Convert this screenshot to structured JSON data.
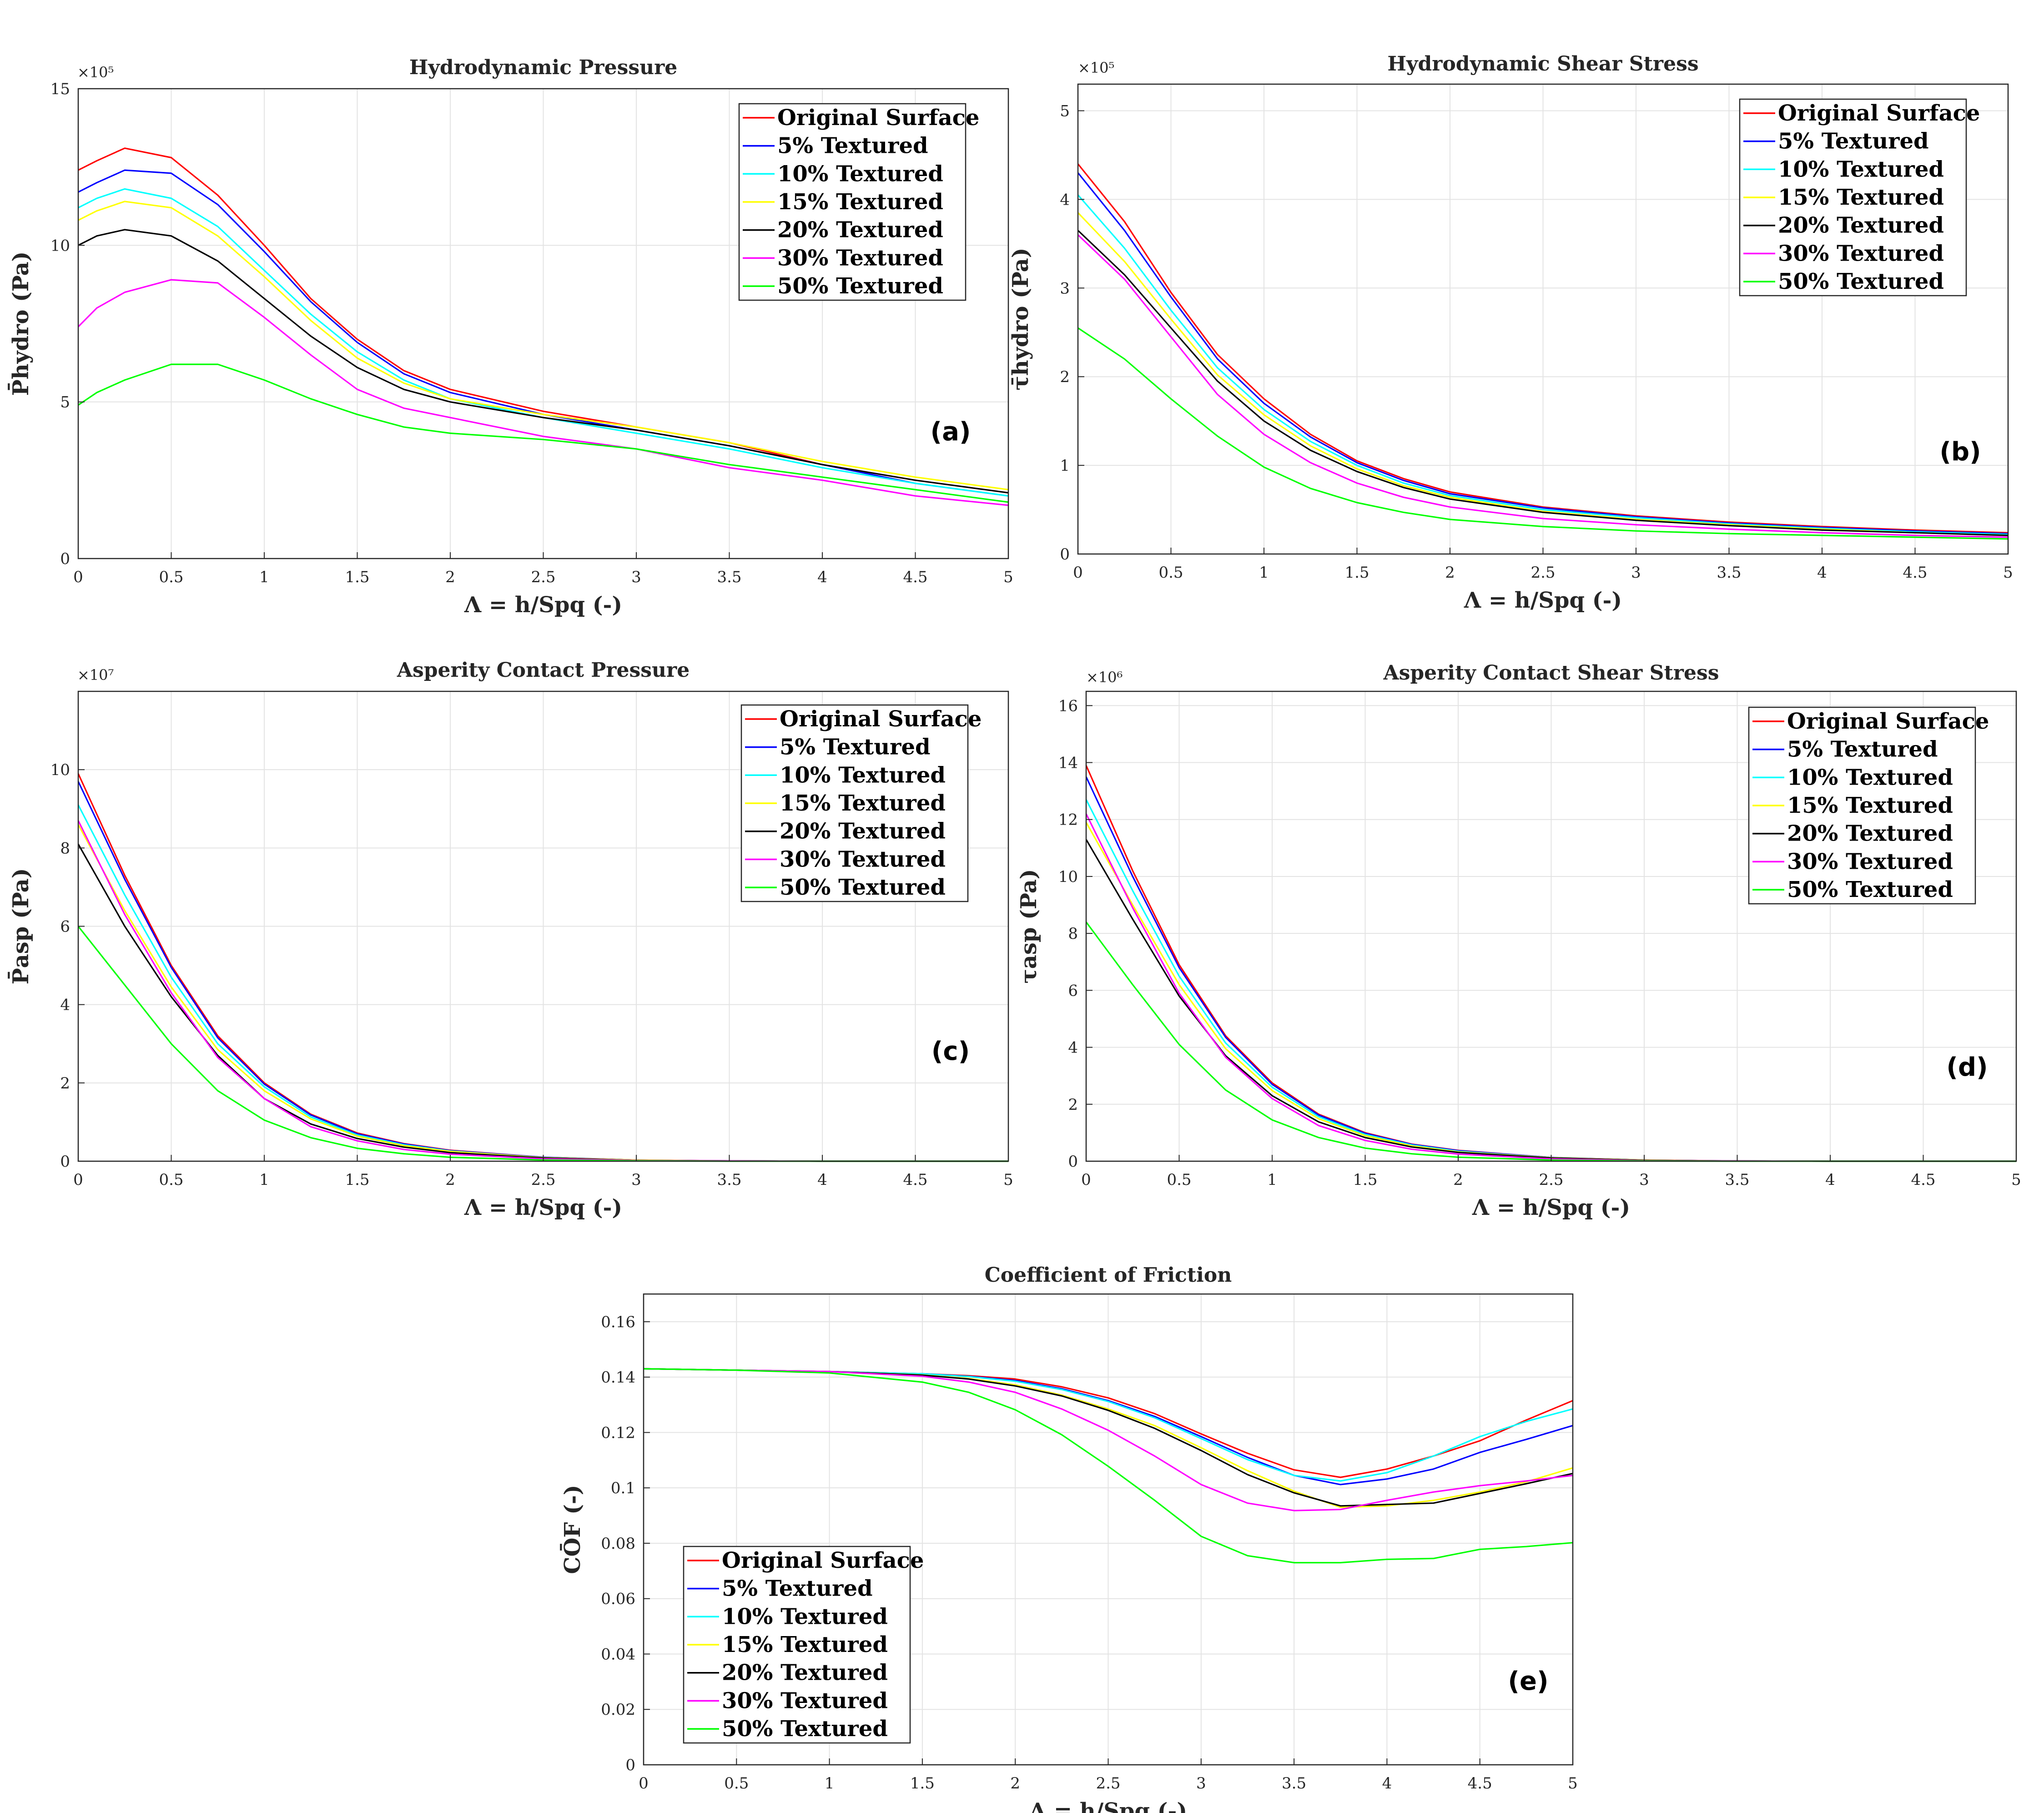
{
  "chart_data": [
    {
      "type": "line",
      "title": "Hydrodynamic Pressure",
      "xlabel": "Λ = h/Spq (-)",
      "ylabel": "P̄hydro (Pa)",
      "multiplier": "×10⁵",
      "panel_tag": "(a)",
      "xlim": [
        0,
        5
      ],
      "ylim": [
        0,
        15
      ],
      "xticks": [
        0,
        0.5,
        1,
        1.5,
        2,
        2.5,
        3,
        3.5,
        4,
        4.5,
        5
      ],
      "xtick_labels": [
        "0",
        "0.5",
        "1",
        "1.5",
        "2",
        "2.5",
        "3",
        "3.5",
        "4",
        "4.5",
        "5"
      ],
      "yticks": [
        0,
        5,
        10,
        15
      ],
      "ytick_labels": [
        "0",
        "5",
        "10",
        "15"
      ],
      "grid": true,
      "legend": "top-right",
      "x": [
        0,
        0.1,
        0.25,
        0.5,
        0.75,
        1,
        1.25,
        1.5,
        1.75,
        2,
        2.5,
        3,
        3.5,
        4,
        4.5,
        5
      ],
      "series": [
        {
          "name": "Original Surface",
          "color": "#ff0000",
          "values": [
            12.4,
            12.7,
            13.1,
            12.8,
            11.6,
            10.0,
            8.3,
            7.0,
            6.0,
            5.4,
            4.7,
            4.2,
            3.7,
            3.0,
            2.5,
            2.1
          ]
        },
        {
          "name": "5% Textured",
          "color": "#0000ff",
          "values": [
            11.7,
            12.0,
            12.4,
            12.3,
            11.3,
            9.8,
            8.2,
            6.9,
            5.9,
            5.3,
            4.6,
            4.1,
            3.6,
            3.0,
            2.4,
            2.0
          ]
        },
        {
          "name": "10% Textured",
          "color": "#00ffff",
          "values": [
            11.2,
            11.5,
            11.8,
            11.5,
            10.6,
            9.2,
            7.8,
            6.6,
            5.7,
            5.1,
            4.5,
            4.0,
            3.5,
            2.9,
            2.4,
            2.0
          ]
        },
        {
          "name": "15% Textured",
          "color": "#ffff00",
          "values": [
            10.8,
            11.1,
            11.4,
            11.2,
            10.3,
            9.0,
            7.6,
            6.4,
            5.6,
            5.1,
            4.6,
            4.2,
            3.7,
            3.1,
            2.6,
            2.2
          ]
        },
        {
          "name": "20% Textured",
          "color": "#000000",
          "values": [
            10.0,
            10.3,
            10.5,
            10.3,
            9.5,
            8.3,
            7.1,
            6.1,
            5.4,
            5.0,
            4.5,
            4.1,
            3.6,
            3.0,
            2.5,
            2.1
          ]
        },
        {
          "name": "30% Textured",
          "color": "#ff00ff",
          "values": [
            7.4,
            8.0,
            8.5,
            8.9,
            8.8,
            7.7,
            6.5,
            5.4,
            4.8,
            4.5,
            3.9,
            3.5,
            2.9,
            2.5,
            2.0,
            1.7
          ]
        },
        {
          "name": "50% Textured",
          "color": "#00ff00",
          "values": [
            4.9,
            5.3,
            5.7,
            6.2,
            6.2,
            5.7,
            5.1,
            4.6,
            4.2,
            4.0,
            3.8,
            3.5,
            3.0,
            2.6,
            2.2,
            1.8
          ]
        }
      ]
    },
    {
      "type": "line",
      "title": "Hydrodynamic Shear Stress",
      "xlabel": "Λ = h/Spq (-)",
      "ylabel": "τ̄hydro (Pa)",
      "multiplier": "×10⁵",
      "panel_tag": "(b)",
      "xlim": [
        0,
        5
      ],
      "ylim": [
        0,
        5.3
      ],
      "xticks": [
        0,
        0.5,
        1,
        1.5,
        2,
        2.5,
        3,
        3.5,
        4,
        4.5,
        5
      ],
      "xtick_labels": [
        "0",
        "0.5",
        "1",
        "1.5",
        "2",
        "2.5",
        "3",
        "3.5",
        "4",
        "4.5",
        "5"
      ],
      "yticks": [
        0,
        1,
        2,
        3,
        4,
        5
      ],
      "ytick_labels": [
        "0",
        "1",
        "2",
        "3",
        "4",
        "5"
      ],
      "grid": true,
      "legend": "top-right",
      "x": [
        0,
        0.25,
        0.5,
        0.75,
        1,
        1.25,
        1.5,
        1.75,
        2,
        2.5,
        3,
        3.5,
        4,
        4.5,
        5
      ],
      "series": [
        {
          "name": "Original Surface",
          "color": "#ff0000",
          "values": [
            4.4,
            3.75,
            2.95,
            2.25,
            1.75,
            1.35,
            1.05,
            0.85,
            0.7,
            0.53,
            0.43,
            0.36,
            0.31,
            0.27,
            0.24
          ]
        },
        {
          "name": "5% Textured",
          "color": "#0000ff",
          "values": [
            4.3,
            3.65,
            2.9,
            2.2,
            1.7,
            1.32,
            1.03,
            0.83,
            0.68,
            0.52,
            0.42,
            0.35,
            0.3,
            0.26,
            0.23
          ]
        },
        {
          "name": "10% Textured",
          "color": "#00ffff",
          "values": [
            4.05,
            3.45,
            2.75,
            2.1,
            1.63,
            1.27,
            1.0,
            0.8,
            0.66,
            0.5,
            0.41,
            0.34,
            0.29,
            0.25,
            0.22
          ]
        },
        {
          "name": "15% Textured",
          "color": "#ffff00",
          "values": [
            3.85,
            3.3,
            2.65,
            2.02,
            1.57,
            1.22,
            0.96,
            0.77,
            0.64,
            0.48,
            0.39,
            0.33,
            0.28,
            0.24,
            0.21
          ]
        },
        {
          "name": "20% Textured",
          "color": "#000000",
          "values": [
            3.65,
            3.15,
            2.55,
            1.95,
            1.5,
            1.17,
            0.93,
            0.75,
            0.62,
            0.47,
            0.38,
            0.32,
            0.27,
            0.24,
            0.21
          ]
        },
        {
          "name": "30% Textured",
          "color": "#ff00ff",
          "values": [
            3.6,
            3.1,
            2.45,
            1.8,
            1.35,
            1.03,
            0.8,
            0.64,
            0.53,
            0.4,
            0.33,
            0.28,
            0.24,
            0.21,
            0.19
          ]
        },
        {
          "name": "50% Textured",
          "color": "#00ff00",
          "values": [
            2.55,
            2.2,
            1.75,
            1.33,
            0.98,
            0.74,
            0.58,
            0.47,
            0.39,
            0.31,
            0.26,
            0.23,
            0.21,
            0.19,
            0.17
          ]
        }
      ]
    },
    {
      "type": "line",
      "title": "Asperity Contact Pressure",
      "xlabel": "Λ = h/Spq (-)",
      "ylabel": "P̄asp (Pa)",
      "multiplier": "×10⁷",
      "panel_tag": "(c)",
      "xlim": [
        0,
        5
      ],
      "ylim": [
        0,
        12
      ],
      "xticks": [
        0,
        0.5,
        1,
        1.5,
        2,
        2.5,
        3,
        3.5,
        4,
        4.5,
        5
      ],
      "xtick_labels": [
        "0",
        "0.5",
        "1",
        "1.5",
        "2",
        "2.5",
        "3",
        "3.5",
        "4",
        "4.5",
        "5"
      ],
      "yticks": [
        0,
        2,
        4,
        6,
        8,
        10
      ],
      "ytick_labels": [
        "0",
        "2",
        "4",
        "6",
        "8",
        "10"
      ],
      "grid": true,
      "legend": "top-right",
      "x": [
        0,
        0.25,
        0.5,
        0.75,
        1,
        1.25,
        1.5,
        1.75,
        2,
        2.5,
        3,
        3.5,
        4,
        4.5,
        5
      ],
      "series": [
        {
          "name": "Original Surface",
          "color": "#ff0000",
          "values": [
            9.9,
            7.3,
            5.0,
            3.2,
            2.0,
            1.2,
            0.72,
            0.45,
            0.28,
            0.1,
            0.03,
            0.01,
            0,
            0,
            0
          ]
        },
        {
          "name": "5% Textured",
          "color": "#0000ff",
          "values": [
            9.7,
            7.2,
            4.95,
            3.15,
            1.97,
            1.18,
            0.7,
            0.44,
            0.27,
            0.1,
            0.03,
            0.01,
            0,
            0,
            0
          ]
        },
        {
          "name": "10% Textured",
          "color": "#00ffff",
          "values": [
            9.1,
            6.8,
            4.7,
            3.0,
            1.9,
            1.13,
            0.67,
            0.42,
            0.26,
            0.09,
            0.03,
            0.01,
            0,
            0,
            0
          ]
        },
        {
          "name": "15% Textured",
          "color": "#ffff00",
          "values": [
            8.6,
            6.4,
            4.45,
            2.85,
            1.8,
            1.08,
            0.64,
            0.4,
            0.25,
            0.09,
            0.03,
            0.01,
            0,
            0,
            0
          ]
        },
        {
          "name": "20% Textured",
          "color": "#000000",
          "values": [
            8.1,
            6.0,
            4.2,
            2.7,
            1.6,
            0.95,
            0.58,
            0.36,
            0.22,
            0.08,
            0.02,
            0.01,
            0,
            0,
            0
          ]
        },
        {
          "name": "30% Textured",
          "color": "#ff00ff",
          "values": [
            8.7,
            6.3,
            4.3,
            2.65,
            1.6,
            0.88,
            0.52,
            0.3,
            0.18,
            0.06,
            0.02,
            0.01,
            0,
            0,
            0
          ]
        },
        {
          "name": "50% Textured",
          "color": "#00ff00",
          "values": [
            6.0,
            4.5,
            3.0,
            1.8,
            1.05,
            0.6,
            0.33,
            0.19,
            0.1,
            0.03,
            0.01,
            0,
            0,
            0,
            0
          ]
        }
      ]
    },
    {
      "type": "line",
      "title": "Asperity Contact Shear Stress",
      "xlabel": "Λ = h/Spq (-)",
      "ylabel": "τasp (Pa)",
      "multiplier": "×10⁶",
      "panel_tag": "(d)",
      "xlim": [
        0,
        5
      ],
      "ylim": [
        0,
        16.5
      ],
      "xticks": [
        0,
        0.5,
        1,
        1.5,
        2,
        2.5,
        3,
        3.5,
        4,
        4.5,
        5
      ],
      "xtick_labels": [
        "0",
        "0.5",
        "1",
        "1.5",
        "2",
        "2.5",
        "3",
        "3.5",
        "4",
        "4.5",
        "5"
      ],
      "yticks": [
        0,
        2,
        4,
        6,
        8,
        10,
        12,
        14,
        16
      ],
      "ytick_labels": [
        "0",
        "2",
        "4",
        "6",
        "8",
        "10",
        "12",
        "14",
        "16"
      ],
      "grid": true,
      "legend": "top-right",
      "x": [
        0,
        0.25,
        0.5,
        0.75,
        1,
        1.25,
        1.5,
        1.75,
        2,
        2.5,
        3,
        3.5,
        4,
        4.5,
        5
      ],
      "series": [
        {
          "name": "Original Surface",
          "color": "#ff0000",
          "values": [
            13.9,
            10.2,
            6.9,
            4.4,
            2.75,
            1.65,
            1.0,
            0.6,
            0.38,
            0.13,
            0.04,
            0.01,
            0,
            0,
            0
          ]
        },
        {
          "name": "5% Textured",
          "color": "#0000ff",
          "values": [
            13.5,
            10.0,
            6.8,
            4.35,
            2.7,
            1.62,
            0.98,
            0.59,
            0.37,
            0.13,
            0.04,
            0.01,
            0,
            0,
            0
          ]
        },
        {
          "name": "10% Textured",
          "color": "#00ffff",
          "values": [
            12.7,
            9.5,
            6.5,
            4.15,
            2.6,
            1.56,
            0.94,
            0.57,
            0.35,
            0.12,
            0.04,
            0.01,
            0,
            0,
            0
          ]
        },
        {
          "name": "15% Textured",
          "color": "#ffff00",
          "values": [
            11.9,
            9.0,
            6.2,
            3.95,
            2.48,
            1.49,
            0.9,
            0.54,
            0.33,
            0.12,
            0.04,
            0.01,
            0,
            0,
            0
          ]
        },
        {
          "name": "20% Textured",
          "color": "#000000",
          "values": [
            11.3,
            8.5,
            5.8,
            3.7,
            2.3,
            1.38,
            0.83,
            0.5,
            0.31,
            0.11,
            0.03,
            0.01,
            0,
            0,
            0
          ]
        },
        {
          "name": "30% Textured",
          "color": "#ff00ff",
          "values": [
            12.2,
            8.9,
            5.9,
            3.65,
            2.2,
            1.25,
            0.73,
            0.42,
            0.25,
            0.08,
            0.02,
            0.01,
            0,
            0,
            0
          ]
        },
        {
          "name": "50% Textured",
          "color": "#00ff00",
          "values": [
            8.4,
            6.2,
            4.1,
            2.5,
            1.45,
            0.83,
            0.46,
            0.26,
            0.14,
            0.04,
            0.01,
            0,
            0,
            0,
            0
          ]
        }
      ]
    },
    {
      "type": "line",
      "title": "Coefficient of Friction",
      "xlabel": "Λ = h/Spq (-)",
      "ylabel": "CŌF (-)",
      "multiplier": "",
      "panel_tag": "(e)",
      "xlim": [
        0,
        5
      ],
      "ylim": [
        0,
        0.17
      ],
      "xticks": [
        0,
        0.5,
        1,
        1.5,
        2,
        2.5,
        3,
        3.5,
        4,
        4.5,
        5
      ],
      "xtick_labels": [
        "0",
        "0.5",
        "1",
        "1.5",
        "2",
        "2.5",
        "3",
        "3.5",
        "4",
        "4.5",
        "5"
      ],
      "yticks": [
        0,
        0.02,
        0.04,
        0.06,
        0.08,
        0.1,
        0.12,
        0.14,
        0.16
      ],
      "ytick_labels": [
        "0",
        "0.02",
        "0.04",
        "0.06",
        "0.08",
        "0.1",
        "0.12",
        "0.14",
        "0.16"
      ],
      "grid": true,
      "legend": "bottom-left",
      "x": [
        0,
        0.5,
        1,
        1.5,
        1.75,
        2,
        2.25,
        2.5,
        2.75,
        3,
        3.25,
        3.5,
        3.75,
        4,
        4.25,
        4.5,
        4.75,
        5
      ],
      "series": [
        {
          "name": "Original Surface",
          "color": "#ff0000",
          "values": [
            0.143,
            0.1425,
            0.142,
            0.1412,
            0.1405,
            0.1393,
            0.1365,
            0.1325,
            0.1268,
            0.1195,
            0.1125,
            0.1065,
            0.1038,
            0.1068,
            0.1115,
            0.117,
            0.1245,
            0.1315
          ]
        },
        {
          "name": "5% Textured",
          "color": "#0000ff",
          "values": [
            0.143,
            0.1425,
            0.142,
            0.1412,
            0.1403,
            0.1388,
            0.1358,
            0.1315,
            0.1258,
            0.1185,
            0.111,
            0.1045,
            0.1012,
            0.1032,
            0.1068,
            0.1128,
            0.1175,
            0.1225
          ]
        },
        {
          "name": "10% Textured",
          "color": "#00ffff",
          "values": [
            0.143,
            0.1425,
            0.142,
            0.1412,
            0.1402,
            0.1385,
            0.1355,
            0.1312,
            0.1253,
            0.1178,
            0.1102,
            0.1045,
            0.1025,
            0.1055,
            0.1115,
            0.1185,
            0.124,
            0.1285
          ]
        },
        {
          "name": "15% Textured",
          "color": "#ffff00",
          "values": [
            0.143,
            0.1425,
            0.142,
            0.1408,
            0.1395,
            0.1372,
            0.1335,
            0.1285,
            0.1225,
            0.1145,
            0.1062,
            0.0988,
            0.093,
            0.0935,
            0.0955,
            0.0985,
            0.1022,
            0.1072
          ]
        },
        {
          "name": "20% Textured",
          "color": "#000000",
          "values": [
            0.143,
            0.1425,
            0.142,
            0.1407,
            0.1393,
            0.1368,
            0.1332,
            0.128,
            0.1215,
            0.1135,
            0.1048,
            0.0982,
            0.0935,
            0.094,
            0.0945,
            0.098,
            0.1015,
            0.1052
          ]
        },
        {
          "name": "30% Textured",
          "color": "#ff00ff",
          "values": [
            0.143,
            0.1425,
            0.142,
            0.1403,
            0.1382,
            0.1345,
            0.1285,
            0.1208,
            0.1115,
            0.1012,
            0.0945,
            0.0918,
            0.0922,
            0.0955,
            0.0985,
            0.1008,
            0.1025,
            0.1045
          ]
        },
        {
          "name": "50% Textured",
          "color": "#00ff00",
          "values": [
            0.143,
            0.1425,
            0.1415,
            0.1382,
            0.1345,
            0.1282,
            0.1192,
            0.1078,
            0.0955,
            0.0825,
            0.0755,
            0.073,
            0.073,
            0.0742,
            0.0745,
            0.0778,
            0.0788,
            0.0802
          ]
        }
      ]
    }
  ]
}
